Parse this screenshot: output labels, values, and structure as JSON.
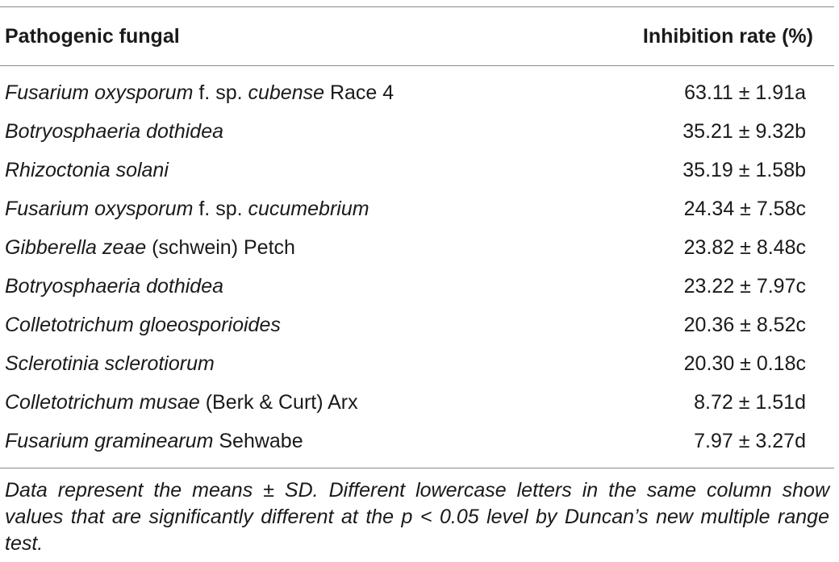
{
  "table": {
    "headers": {
      "pathogen": "Pathogenic fungal",
      "rate": "Inhibition rate (%)"
    },
    "rows": [
      {
        "name_parts": [
          {
            "t": "Fusarium oxysporum",
            "i": true
          },
          {
            "t": " f. sp. ",
            "i": false
          },
          {
            "t": "cubense",
            "i": true
          },
          {
            "t": " Race 4",
            "i": false
          }
        ],
        "value": "63.11 ± 1.91a"
      },
      {
        "name_parts": [
          {
            "t": "Botryosphaeria dothidea",
            "i": true
          }
        ],
        "value": "35.21 ± 9.32b"
      },
      {
        "name_parts": [
          {
            "t": "Rhizoctonia solani",
            "i": true
          }
        ],
        "value": "35.19 ± 1.58b"
      },
      {
        "name_parts": [
          {
            "t": "Fusarium oxysporum",
            "i": true
          },
          {
            "t": " f. sp. ",
            "i": false
          },
          {
            "t": "cucumebrium",
            "i": true
          }
        ],
        "value": "24.34 ± 7.58c"
      },
      {
        "name_parts": [
          {
            "t": "Gibberella zeae",
            "i": true
          },
          {
            "t": " (schwein) Petch",
            "i": false
          }
        ],
        "value": "23.82 ± 8.48c"
      },
      {
        "name_parts": [
          {
            "t": "Botryosphaeria dothidea",
            "i": true
          }
        ],
        "value": "23.22 ± 7.97c"
      },
      {
        "name_parts": [
          {
            "t": "Colletotrichum gloeosporioides",
            "i": true
          }
        ],
        "value": "20.36 ± 8.52c"
      },
      {
        "name_parts": [
          {
            "t": "Sclerotinia sclerotiorum",
            "i": true
          }
        ],
        "value": "20.30 ± 0.18c"
      },
      {
        "name_parts": [
          {
            "t": "Colletotrichum musae",
            "i": true
          },
          {
            "t": " (Berk & Curt) Arx",
            "i": false
          }
        ],
        "value": "8.72 ± 1.51d"
      },
      {
        "name_parts": [
          {
            "t": "Fusarium graminearum",
            "i": true
          },
          {
            "t": " Sehwabe",
            "i": false
          }
        ],
        "value": "7.97 ± 3.27d"
      }
    ],
    "footnote": "Data represent the means ± SD. Different lowercase letters in the same column show values that are significantly different at the p < 0.05 level by Duncan’s new multiple range test."
  }
}
